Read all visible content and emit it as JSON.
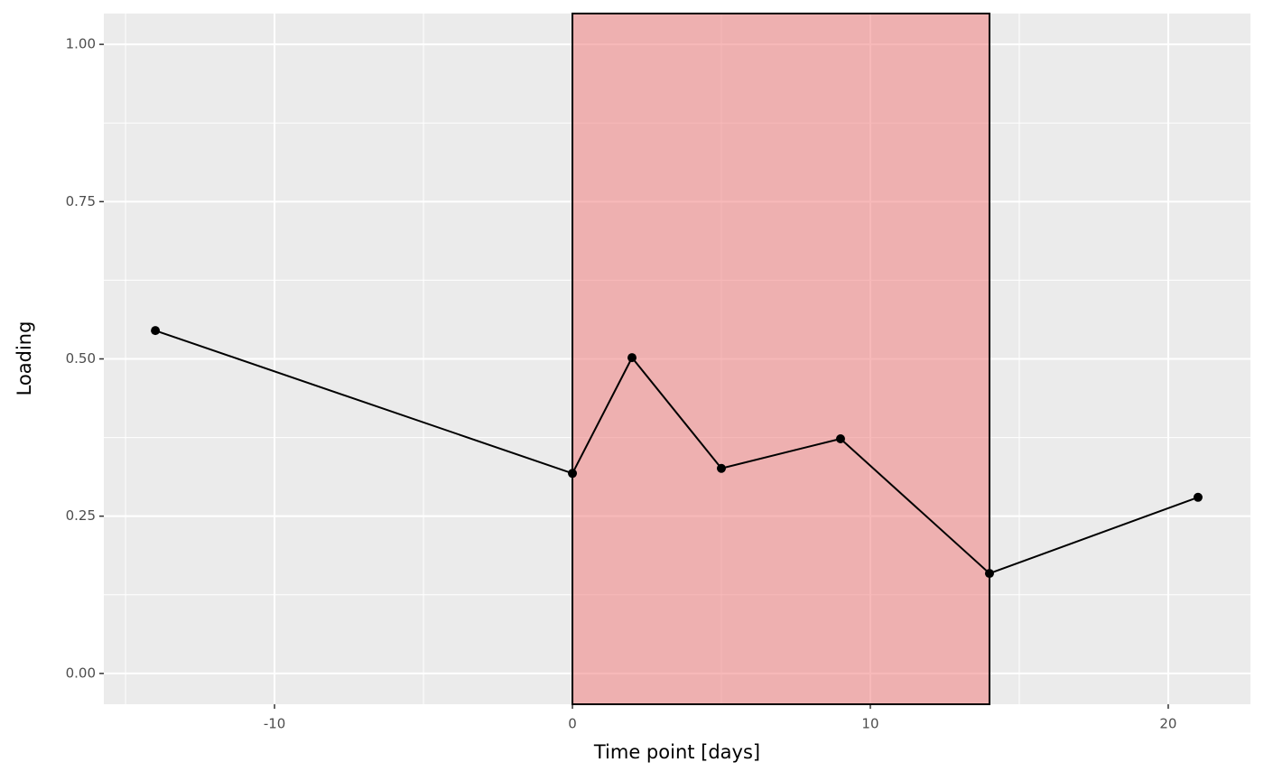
{
  "chart_data": {
    "type": "line",
    "x_label": "Time point [days]",
    "y_label": "Loading",
    "x": [
      -14,
      0,
      2,
      5,
      9,
      14,
      21
    ],
    "values": [
      0.545,
      0.318,
      0.502,
      0.326,
      0.373,
      0.159,
      0.28
    ],
    "color": "#000000",
    "region": [
      0,
      14
    ],
    "region_color": "#f08080",
    "xlim": [
      -15.73,
      22.76
    ],
    "ylim": [
      -0.049,
      1.049
    ],
    "xticks": [
      -10,
      0,
      10,
      20
    ],
    "yticks": [
      {
        "value": 0,
        "label": "0.00"
      },
      {
        "value": 0.25,
        "label": "0.25"
      },
      {
        "value": 0.5,
        "label": "0.50"
      },
      {
        "value": 0.75,
        "label": "0.75"
      },
      {
        "value": 1,
        "label": "1.00"
      }
    ],
    "x_minor_ticks": [
      -15,
      -5,
      5,
      15
    ],
    "y_minor_ticks": [
      0.125,
      0.375,
      0.625,
      0.875
    ],
    "grid": true
  }
}
